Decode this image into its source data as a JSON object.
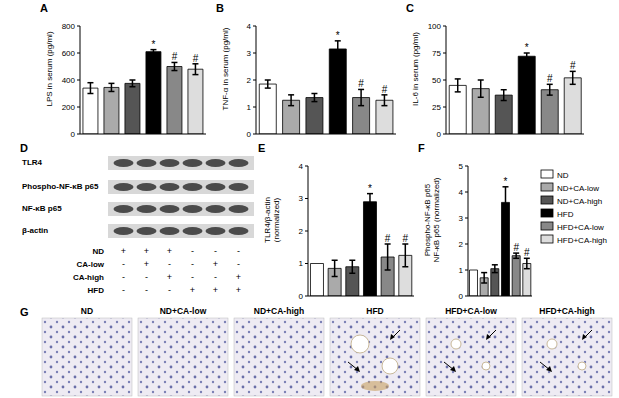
{
  "chart_data": [
    {
      "type": "bar",
      "title": "A",
      "ylabel": [
        "LPS in serum (pg/ml)"
      ],
      "categories": [
        null,
        null,
        null,
        null,
        null,
        null
      ],
      "values": [
        340,
        345,
        375,
        610,
        500,
        480
      ],
      "errors": [
        40,
        30,
        25,
        15,
        30,
        40
      ],
      "annotations": [
        null,
        null,
        null,
        "*",
        "#",
        "#"
      ],
      "colors": [
        "#ffffff",
        "#aaaaaa",
        "#555555",
        "#000000",
        "#888888",
        "#dddddd"
      ],
      "ylim": [
        0,
        800
      ],
      "yticks": [
        0,
        200,
        400,
        600,
        800
      ],
      "tick_labels": "y",
      "grid": false
    },
    {
      "type": "bar",
      "title": "B",
      "ylabel": [
        "TNF-α in serum (pg/ml)"
      ],
      "categories": [
        null,
        null,
        null,
        null,
        null,
        null
      ],
      "values": [
        1.85,
        1.25,
        1.35,
        3.15,
        1.35,
        1.25
      ],
      "errors": [
        0.15,
        0.2,
        0.15,
        0.3,
        0.3,
        0.2
      ],
      "annotations": [
        null,
        null,
        null,
        "*",
        "#",
        "#"
      ],
      "colors": [
        "#ffffff",
        "#aaaaaa",
        "#555555",
        "#000000",
        "#888888",
        "#dddddd"
      ],
      "ylim": [
        0,
        4
      ],
      "yticks": [
        0,
        1,
        2,
        3,
        4
      ],
      "tick_labels": "y",
      "grid": false
    },
    {
      "type": "bar",
      "title": "C",
      "ylabel": [
        "IL-6 in serum (pg/ml)"
      ],
      "categories": [
        null,
        null,
        null,
        null,
        null,
        null
      ],
      "values": [
        45,
        42,
        36,
        72,
        41,
        52
      ],
      "errors": [
        6,
        8,
        5,
        3,
        5,
        6
      ],
      "annotations": [
        null,
        null,
        null,
        "*",
        "#",
        "#"
      ],
      "colors": [
        "#ffffff",
        "#aaaaaa",
        "#555555",
        "#000000",
        "#888888",
        "#dddddd"
      ],
      "ylim": [
        0,
        100
      ],
      "yticks": [
        0,
        25,
        50,
        75,
        100
      ],
      "tick_labels": "y",
      "grid": false
    },
    {
      "type": "bar",
      "title": "E",
      "ylabel": [
        "TLR4/β-actin",
        "(normalized)"
      ],
      "categories": [
        null,
        null,
        null,
        null,
        null,
        null
      ],
      "values": [
        1,
        0.85,
        0.9,
        2.9,
        1.2,
        1.25
      ],
      "errors": [
        0,
        0.25,
        0.2,
        0.25,
        0.4,
        0.35
      ],
      "annotations": [
        null,
        null,
        null,
        "*",
        "#",
        "#"
      ],
      "colors": [
        "#ffffff",
        "#aaaaaa",
        "#555555",
        "#000000",
        "#888888",
        "#dddddd"
      ],
      "ylim": [
        0,
        4
      ],
      "yticks": [
        0,
        1,
        2,
        3,
        4
      ],
      "tick_labels": "y",
      "grid": false
    },
    {
      "type": "bar",
      "title": "F",
      "ylabel": [
        "Phospho-NF-κB p65",
        "NF-κB p65 (normalized)"
      ],
      "categories": [
        null,
        null,
        null,
        null,
        null,
        null
      ],
      "values": [
        1,
        0.7,
        1.05,
        3.6,
        1.55,
        1.25
      ],
      "errors": [
        0,
        0.2,
        0.15,
        0.6,
        0.1,
        0.2
      ],
      "annotations": [
        null,
        null,
        null,
        "*",
        "#",
        "#"
      ],
      "colors": [
        "#ffffff",
        "#aaaaaa",
        "#555555",
        "#000000",
        "#888888",
        "#dddddd"
      ],
      "ylim": [
        0,
        5
      ],
      "yticks": [
        0,
        1,
        2,
        3,
        4,
        5
      ],
      "tick_labels": "y",
      "grid": false
    }
  ],
  "legend_entries": [
    {
      "name": "ND",
      "color": "#ffffff"
    },
    {
      "name": "ND+CA-low",
      "color": "#aaaaaa"
    },
    {
      "name": "ND+CA-high",
      "color": "#555555"
    },
    {
      "name": "HFD",
      "color": "#000000"
    },
    {
      "name": "HFD+CA-low",
      "color": "#888888"
    },
    {
      "name": "HFD+CA-high",
      "color": "#dddddd"
    }
  ],
  "blot": {
    "title": "D",
    "rows": [
      "TLR4",
      "Phospho-NF-κB p65",
      "NF-κB p65",
      "β-actin"
    ],
    "treatments": [
      {
        "name": "ND",
        "marks": [
          "+",
          "+",
          "+",
          "-",
          "-",
          "-"
        ]
      },
      {
        "name": "CA-low",
        "marks": [
          "-",
          "+",
          "-",
          "-",
          "+",
          "-"
        ]
      },
      {
        "name": "CA-high",
        "marks": [
          "-",
          "-",
          "+",
          "-",
          "-",
          "+"
        ]
      },
      {
        "name": "HFD",
        "marks": [
          "-",
          "-",
          "-",
          "+",
          "+",
          "+"
        ]
      }
    ]
  },
  "histology": {
    "title": "G",
    "panels": [
      "ND",
      "ND+CA-low",
      "ND+CA-high",
      "HFD",
      "HFD+CA-low",
      "HFD+CA-high"
    ]
  }
}
